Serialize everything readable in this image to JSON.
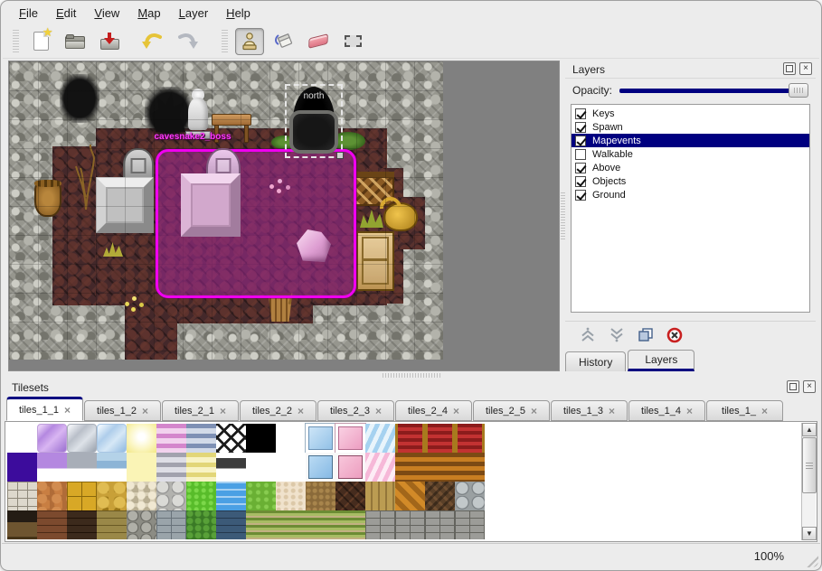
{
  "menu": {
    "items": [
      "File",
      "Edit",
      "View",
      "Map",
      "Layer",
      "Help"
    ]
  },
  "toolbar": {
    "active_tool": "stamp",
    "tools": [
      "new",
      "open",
      "save",
      "undo",
      "redo",
      "stamp",
      "fill",
      "eraser",
      "select-rect"
    ]
  },
  "map": {
    "north_label": "north",
    "event_label": "cavesnake2_boss",
    "selection_color": "#ff00ff"
  },
  "layers_panel": {
    "title": "Layers",
    "opacity_label": "Opacity:",
    "opacity_value_pct": 100,
    "layers": [
      {
        "name": "Keys",
        "checked": true,
        "selected": false
      },
      {
        "name": "Spawn",
        "checked": true,
        "selected": false
      },
      {
        "name": "Mapevents",
        "checked": true,
        "selected": true
      },
      {
        "name": "Walkable",
        "checked": false,
        "selected": false
      },
      {
        "name": "Above",
        "checked": true,
        "selected": false
      },
      {
        "name": "Objects",
        "checked": true,
        "selected": false
      },
      {
        "name": "Ground",
        "checked": true,
        "selected": false
      }
    ],
    "tabs": [
      {
        "label": "History",
        "active": false
      },
      {
        "label": "Layers",
        "active": true
      }
    ]
  },
  "tilesets_panel": {
    "title": "Tilesets",
    "tabs": [
      {
        "label": "tiles_1_1",
        "active": true
      },
      {
        "label": "tiles_1_2",
        "active": false
      },
      {
        "label": "tiles_2_1",
        "active": false
      },
      {
        "label": "tiles_2_2",
        "active": false
      },
      {
        "label": "tiles_2_3",
        "active": false
      },
      {
        "label": "tiles_2_4",
        "active": false
      },
      {
        "label": "tiles_2_5",
        "active": false
      },
      {
        "label": "tiles_1_3",
        "active": false
      },
      {
        "label": "tiles_1_4",
        "active": false
      },
      {
        "label": "tiles_1_",
        "active": false
      }
    ],
    "grid": [
      [
        "empty",
        "glassP",
        "glassG",
        "glassB",
        "glow",
        "strP",
        "strB",
        "lattice",
        "black",
        "empty",
        "paneB",
        "paneP",
        "weaveB",
        "curtR",
        "curtR",
        "curtR"
      ],
      [
        "indigo",
        "glassP2",
        "glassG2",
        "water2",
        "paleY",
        "strG",
        "strY",
        "sign",
        "empty",
        "empty",
        "winB",
        "winP",
        "weaveP",
        "curtO",
        "curtO",
        "curtO"
      ],
      [
        "pathW",
        "cobbleBr",
        "goldT",
        "goldC",
        "pebble",
        "stoneG",
        "grassB",
        "waterB",
        "grass2",
        "sand",
        "dirt",
        "shingle",
        "planks",
        "basket",
        "herring",
        "stonesG"
      ],
      [
        "wallDk",
        "brickBr",
        "brickDk",
        "brickTan",
        "cobbleG",
        "brickG",
        "hedge",
        "brickBlu",
        "grassW",
        "grassW",
        "grassW",
        "grassW",
        "wallG",
        "wallG",
        "wallG",
        "wallG"
      ]
    ]
  },
  "statusbar": {
    "zoom": "100%"
  },
  "colors": {
    "accent": "#000080",
    "selection": "#ff00ff"
  }
}
